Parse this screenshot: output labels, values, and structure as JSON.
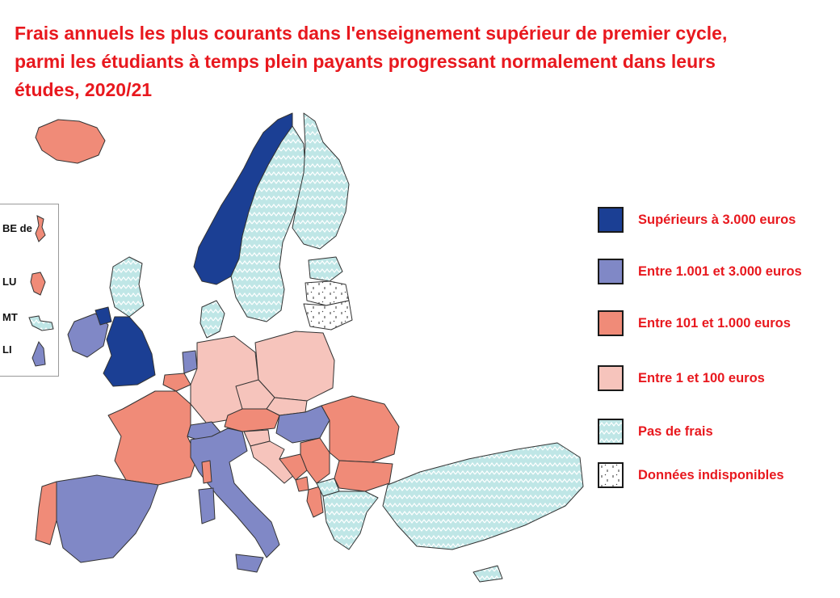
{
  "title": {
    "line1": "Frais annuels les plus courants dans l'enseignement supérieur de premier cycle,",
    "line2": "parmi les étudiants à temps plein payants progressant normalement dans leurs",
    "line3": "études, 2020/21"
  },
  "colors": {
    "sup3000": "#1b3f94",
    "entre1001_3000": "#8088c6",
    "entre101_1000": "#f08b78",
    "entre1_100": "#f6c4bc",
    "pas_de_frais": "#bfe6e6",
    "indisponible": "#ffffff"
  },
  "legend": [
    {
      "key": "sup3000",
      "label": "Supérieurs à  3.000 euros"
    },
    {
      "key": "entre1001_3000",
      "label": "Entre 1.001 et 3.000 euros"
    },
    {
      "key": "entre101_1000",
      "label": "Entre 101 et 1.000 euros"
    },
    {
      "key": "entre1_100",
      "label": "Entre 1 et 100 euros"
    },
    {
      "key": "pas_de_frais",
      "label": "Pas de frais"
    },
    {
      "key": "indisponible",
      "label": "Données indisponibles"
    }
  ],
  "insets": [
    {
      "code": "BE de",
      "category": "entre101_1000"
    },
    {
      "code": "LU",
      "category": "entre101_1000"
    },
    {
      "code": "MT",
      "category": "pas_de_frais"
    },
    {
      "code": "LI",
      "category": "entre1001_3000"
    }
  ],
  "regions": [
    {
      "id": "iceland",
      "category": "entre101_1000"
    },
    {
      "id": "norway",
      "category": "sup3000"
    },
    {
      "id": "sweden",
      "category": "pas_de_frais"
    },
    {
      "id": "finland",
      "category": "pas_de_frais"
    },
    {
      "id": "estonia",
      "category": "pas_de_frais"
    },
    {
      "id": "latvia",
      "category": "indisponible"
    },
    {
      "id": "lithuania",
      "category": "indisponible"
    },
    {
      "id": "denmark",
      "category": "pas_de_frais"
    },
    {
      "id": "scotland",
      "category": "pas_de_frais"
    },
    {
      "id": "ireland",
      "category": "entre1001_3000"
    },
    {
      "id": "northern-ireland",
      "category": "sup3000"
    },
    {
      "id": "england-wales",
      "category": "sup3000"
    },
    {
      "id": "netherlands",
      "category": "entre1001_3000"
    },
    {
      "id": "belgium",
      "category": "entre101_1000"
    },
    {
      "id": "germany",
      "category": "entre1_100"
    },
    {
      "id": "poland",
      "category": "entre1_100"
    },
    {
      "id": "czechia",
      "category": "entre1_100"
    },
    {
      "id": "slovakia",
      "category": "entre1_100"
    },
    {
      "id": "austria",
      "category": "entre101_1000"
    },
    {
      "id": "switzerland",
      "category": "entre1001_3000"
    },
    {
      "id": "hungary",
      "category": "entre1001_3000"
    },
    {
      "id": "slovenia",
      "category": "entre1_100"
    },
    {
      "id": "croatia",
      "category": "entre1_100"
    },
    {
      "id": "bosnia",
      "category": "entre101_1000"
    },
    {
      "id": "serbia",
      "category": "entre101_1000"
    },
    {
      "id": "montenegro",
      "category": "entre101_1000"
    },
    {
      "id": "albania",
      "category": "entre101_1000"
    },
    {
      "id": "north-macedonia",
      "category": "pas_de_frais"
    },
    {
      "id": "romania",
      "category": "entre101_1000"
    },
    {
      "id": "bulgaria",
      "category": "entre101_1000"
    },
    {
      "id": "greece",
      "category": "pas_de_frais"
    },
    {
      "id": "turkey",
      "category": "pas_de_frais"
    },
    {
      "id": "cyprus",
      "category": "pas_de_frais"
    },
    {
      "id": "france",
      "category": "entre101_1000"
    },
    {
      "id": "spain",
      "category": "entre1001_3000"
    },
    {
      "id": "portugal",
      "category": "entre101_1000"
    },
    {
      "id": "italy",
      "category": "entre1001_3000"
    },
    {
      "id": "sardinia",
      "category": "entre1001_3000"
    },
    {
      "id": "sicily",
      "category": "entre1001_3000"
    },
    {
      "id": "corsica",
      "category": "entre101_1000"
    }
  ]
}
